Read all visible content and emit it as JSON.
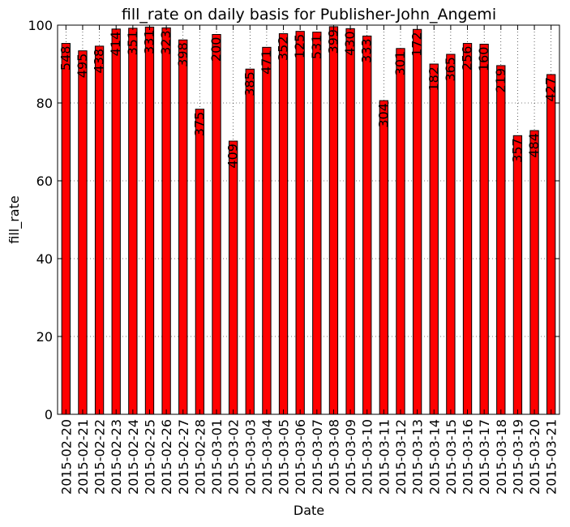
{
  "chart_data": {
    "type": "bar",
    "title": "fill_rate on daily basis for Publisher-John_Angemi",
    "xlabel": "Date",
    "ylabel": "fill_rate",
    "ylim": [
      0,
      100
    ],
    "yticks": [
      0,
      20,
      40,
      60,
      80,
      100
    ],
    "grid": true,
    "bar_color": "#ff0000",
    "bar_edge_color": "#000000",
    "categories": [
      "2015-02-20",
      "2015-02-21",
      "2015-02-22",
      "2015-02-23",
      "2015-02-24",
      "2015-02-25",
      "2015-02-26",
      "2015-02-27",
      "2015-02-28",
      "2015-03-01",
      "2015-03-02",
      "2015-03-03",
      "2015-03-04",
      "2015-03-05",
      "2015-03-06",
      "2015-03-07",
      "2015-03-08",
      "2015-03-09",
      "2015-03-10",
      "2015-03-11",
      "2015-03-12",
      "2015-03-13",
      "2015-03-14",
      "2015-03-15",
      "2015-03-16",
      "2015-03-17",
      "2015-03-18",
      "2015-03-19",
      "2015-03-20",
      "2015-03-21"
    ],
    "values": [
      95.3,
      93.4,
      94.6,
      99.0,
      99.2,
      99.5,
      99.3,
      96.2,
      78.4,
      97.6,
      70.2,
      88.7,
      94.3,
      97.8,
      98.4,
      98.2,
      99.6,
      99.1,
      97.2,
      80.6,
      94.0,
      98.9,
      90.0,
      92.5,
      95.3,
      95.1,
      89.6,
      71.6,
      72.9,
      87.3
    ],
    "data_labels": [
      "548",
      "495",
      "438",
      "414",
      "351",
      "331",
      "323",
      "398",
      "375",
      "200",
      "409",
      "385",
      "471",
      "352",
      "125",
      "531",
      "399",
      "430",
      "333",
      "304",
      "301",
      "172",
      "182",
      "365",
      "256",
      "160",
      "219",
      "357",
      "484",
      "427"
    ]
  }
}
